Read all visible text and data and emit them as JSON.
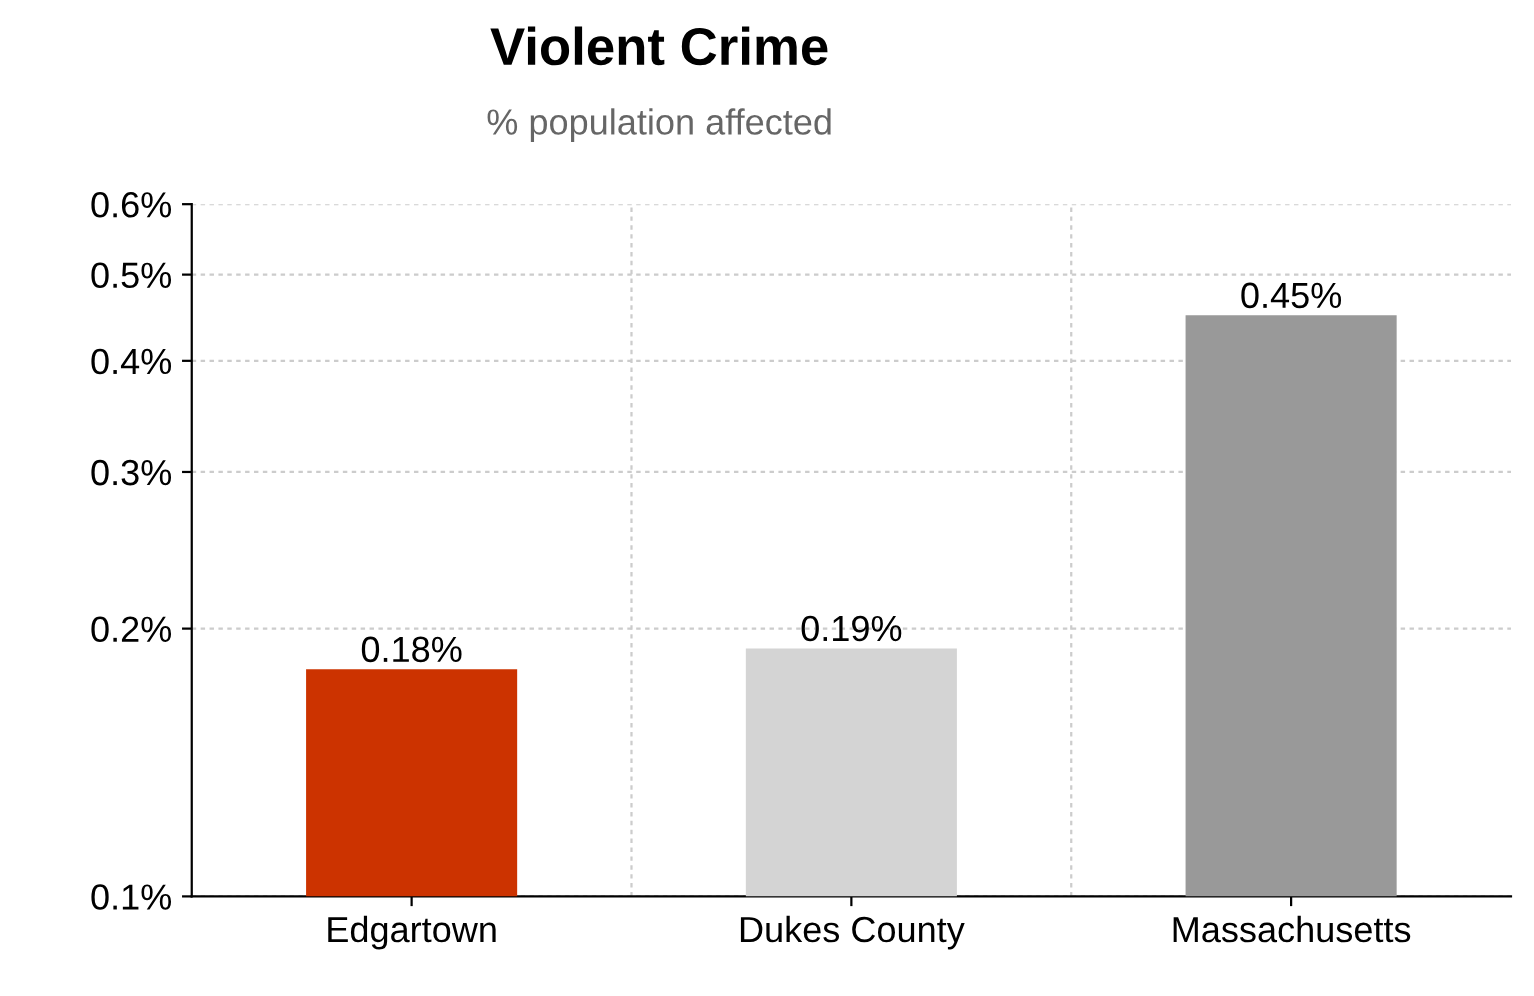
{
  "chart_data": {
    "type": "bar",
    "title": "Violent Crime",
    "subtitle": "% population affected",
    "categories": [
      "Edgartown",
      "Dukes County",
      "Massachusetts"
    ],
    "values": [
      0.18,
      0.19,
      0.45
    ],
    "colors": [
      "#cc3300",
      "#d4d4d4",
      "#999999"
    ],
    "value_labels": [
      "0.18%",
      "0.19%",
      "0.45%"
    ],
    "log": "y",
    "ylim": [
      0.1,
      0.6
    ],
    "yticks": [
      {
        "value": 0.1,
        "label": "0.1%"
      },
      {
        "value": 0.2,
        "label": "0.2%"
      },
      {
        "value": 0.3,
        "label": "0.3%"
      },
      {
        "value": 0.4,
        "label": "0.4%"
      },
      {
        "value": 0.5,
        "label": "0.5%"
      },
      {
        "value": 0.6,
        "label": "0.6%"
      }
    ],
    "grid": true
  }
}
